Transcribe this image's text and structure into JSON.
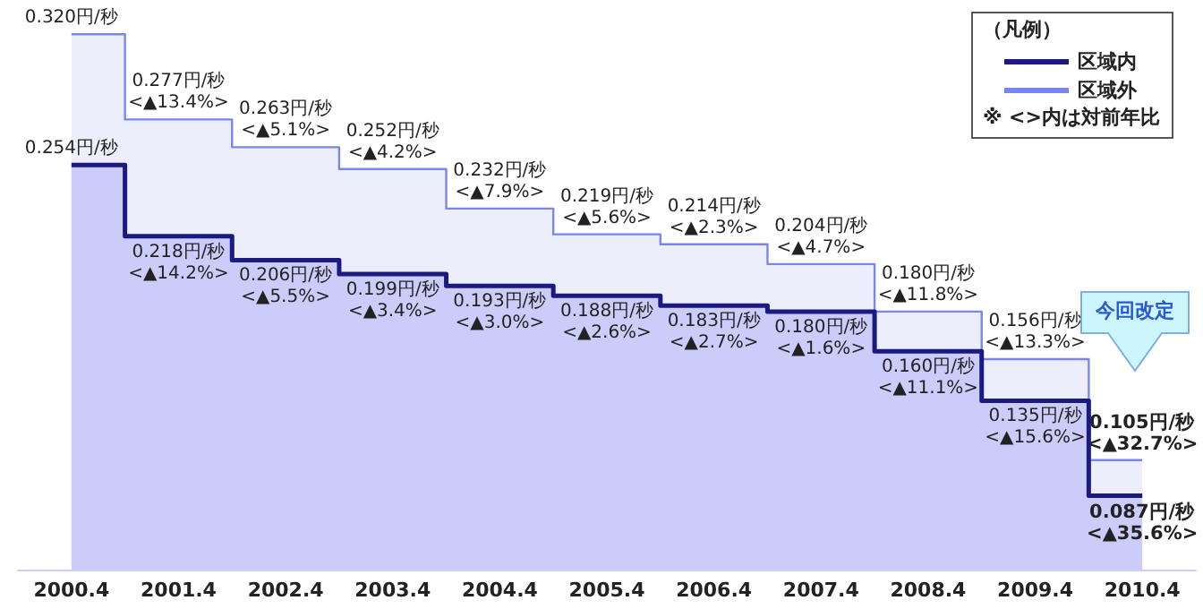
{
  "chart_data": {
    "type": "step",
    "categories": [
      "2000.4",
      "2001.4",
      "2002.4",
      "2003.4",
      "2004.4",
      "2005.4",
      "2006.4",
      "2007.4",
      "2008.4",
      "2009.4",
      "2010.4"
    ],
    "series": [
      {
        "name": "区域内",
        "color": "#1a1a80",
        "values": [
          0.254,
          0.218,
          0.206,
          0.199,
          0.193,
          0.188,
          0.183,
          0.18,
          0.16,
          0.135,
          0.087
        ],
        "value_labels": [
          "0.254円/秒",
          "0.218円/秒\n<▲14.2%>",
          "0.206円/秒\n<▲5.5%>",
          "0.199円/秒\n<▲3.4%>",
          "0.193円/秒\n<▲3.0%>",
          "0.188円/秒\n<▲2.6%>",
          "0.183円/秒\n<▲2.7%>",
          "0.180円/秒\n<▲1.6%>",
          "0.160円/秒\n<▲11.1%>",
          "0.135円/秒\n<▲15.6%>",
          "0.087円/秒\n<▲35.6%>"
        ]
      },
      {
        "name": "区域外",
        "color": "#7a86f0",
        "values": [
          0.32,
          0.277,
          0.263,
          0.252,
          0.232,
          0.219,
          0.214,
          0.204,
          0.18,
          0.156,
          0.105
        ],
        "value_labels": [
          "0.320円/秒",
          "0.277円/秒\n<▲13.4%>",
          "0.263円/秒\n<▲5.1%>",
          "0.252円/秒\n<▲4.2%>",
          "0.232円/秒\n<▲7.9%>",
          "0.219円/秒\n<▲5.6%>",
          "0.214円/秒\n<▲2.3%>",
          "0.204円/秒\n<▲4.7%>",
          "0.180円/秒\n<▲11.8%>",
          "0.156円/秒\n<▲13.3%>",
          "0.105円/秒\n<▲32.7%>"
        ]
      }
    ],
    "tick_labels": "x",
    "grid": false,
    "legend": "top right",
    "legend_title": "（凡例）",
    "annotations": [
      "今回改定",
      "※ <>内は対前年比"
    ]
  }
}
